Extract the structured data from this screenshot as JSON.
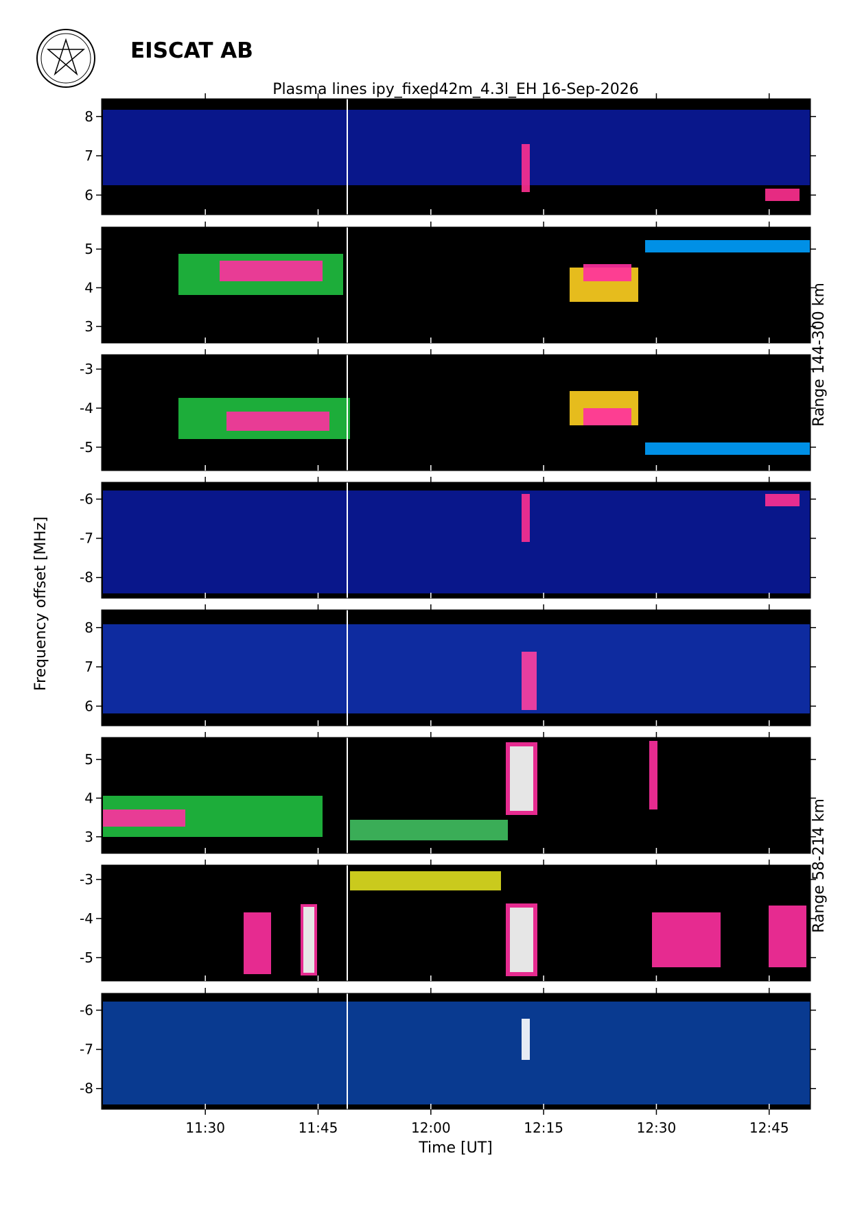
{
  "header": {
    "org": "EISCAT AB"
  },
  "chart_data": {
    "type": "heatmap",
    "title": "Plasma lines   ipy_fixed42m_4.3l_EH  16-Sep-2026",
    "xlabel": "Time [UT]",
    "ylabel": "Frequency offset [MHz]",
    "xlim": [
      676.2,
      770.5
    ],
    "xticks": [
      {
        "value": 690,
        "label": "11:30"
      },
      {
        "value": 705,
        "label": "11:45"
      },
      {
        "value": 720,
        "label": "12:00"
      },
      {
        "value": 735,
        "label": "12:15"
      },
      {
        "value": 750,
        "label": "12:30"
      },
      {
        "value": 765,
        "label": "12:45"
      }
    ],
    "range_labels": [
      "Range 144-300 km",
      "Range 58-214 km"
    ],
    "panels": [
      {
        "ylim": [
          5.5,
          8.45
        ],
        "yticks": [
          6,
          7,
          8
        ]
      },
      {
        "ylim": [
          2.57,
          5.57
        ],
        "yticks": [
          3,
          4,
          5
        ]
      },
      {
        "ylim": [
          -5.6,
          -2.63
        ],
        "yticks": [
          -5,
          -4,
          -3
        ]
      },
      {
        "ylim": [
          -8.53,
          -5.57
        ],
        "yticks": [
          -8,
          -7,
          -6
        ]
      },
      {
        "ylim": [
          5.5,
          8.45
        ],
        "yticks": [
          6,
          7,
          8
        ]
      },
      {
        "ylim": [
          2.57,
          5.57
        ],
        "yticks": [
          3,
          4,
          5
        ]
      },
      {
        "ylim": [
          -5.6,
          -2.63
        ],
        "yticks": [
          -5,
          -4,
          -3
        ]
      },
      {
        "ylim": [
          -8.53,
          -5.57
        ],
        "yticks": [
          -8,
          -7,
          -6
        ]
      }
    ]
  }
}
